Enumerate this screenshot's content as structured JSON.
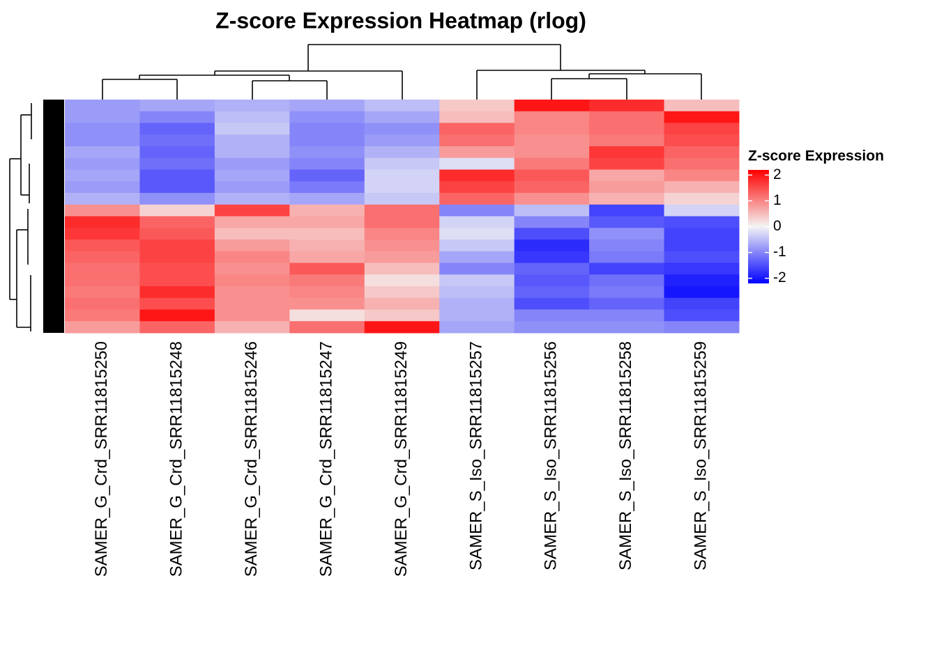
{
  "chart_data": {
    "type": "heatmap",
    "title": "Z-score Expression Heatmap (rlog)",
    "columns": [
      "SAMER_G_Crd_SRR11815250",
      "SAMER_G_Crd_SRR11815248",
      "SAMER_G_Crd_SRR11815246",
      "SAMER_G_Crd_SRR11815247",
      "SAMER_G_Crd_SRR11815249",
      "SAMER_S_Iso_SRR11815257",
      "SAMER_S_Iso_SRR11815256",
      "SAMER_S_Iso_SRR11815258",
      "SAMER_S_Iso_SRR11815259"
    ],
    "values": [
      [
        -0.8,
        -0.7,
        -0.6,
        -0.7,
        -0.5,
        0.4,
        2.0,
        1.8,
        0.5
      ],
      [
        -0.8,
        -1.0,
        -0.5,
        -0.9,
        -0.7,
        0.5,
        1.0,
        1.2,
        2.0
      ],
      [
        -0.9,
        -1.3,
        -0.4,
        -1.0,
        -0.9,
        1.3,
        1.0,
        1.2,
        1.6
      ],
      [
        -0.9,
        -1.2,
        -0.6,
        -1.0,
        -0.8,
        1.2,
        0.9,
        1.1,
        1.5
      ],
      [
        -0.7,
        -1.3,
        -0.6,
        -0.9,
        -0.6,
        0.8,
        0.9,
        1.7,
        1.3
      ],
      [
        -0.8,
        -1.2,
        -0.8,
        -1.0,
        -0.4,
        -0.2,
        1.1,
        1.6,
        1.2
      ],
      [
        -0.7,
        -1.4,
        -0.7,
        -1.3,
        -0.3,
        1.8,
        1.4,
        0.7,
        1.0
      ],
      [
        -0.8,
        -1.4,
        -0.8,
        -1.1,
        -0.3,
        1.6,
        1.3,
        0.8,
        0.6
      ],
      [
        -0.6,
        -0.9,
        -0.6,
        -0.7,
        -0.4,
        1.3,
        0.9,
        0.6,
        0.3
      ],
      [
        0.9,
        0.3,
        1.6,
        0.6,
        1.2,
        -1.0,
        -0.5,
        -1.6,
        -0.3
      ],
      [
        1.8,
        1.3,
        0.7,
        0.7,
        1.2,
        -0.3,
        -1.0,
        -1.4,
        -1.5
      ],
      [
        1.7,
        1.4,
        0.5,
        0.5,
        1.0,
        -0.2,
        -1.5,
        -0.9,
        -1.6
      ],
      [
        1.4,
        1.6,
        0.8,
        0.6,
        0.9,
        -0.4,
        -1.8,
        -1.0,
        -1.6
      ],
      [
        1.3,
        1.6,
        1.0,
        0.7,
        0.8,
        -0.7,
        -1.7,
        -1.1,
        -1.5
      ],
      [
        1.2,
        1.5,
        0.9,
        1.4,
        0.5,
        -1.0,
        -1.3,
        -1.6,
        -1.7
      ],
      [
        1.2,
        1.5,
        1.0,
        1.1,
        0.2,
        -0.4,
        -1.4,
        -1.2,
        -1.9
      ],
      [
        1.1,
        1.8,
        0.9,
        1.0,
        0.4,
        -0.5,
        -1.3,
        -1.1,
        -2.0
      ],
      [
        1.2,
        1.5,
        0.9,
        0.9,
        0.6,
        -0.6,
        -1.5,
        -1.3,
        -1.6
      ],
      [
        1.1,
        2.0,
        0.9,
        0.2,
        0.4,
        -0.6,
        -1.0,
        -1.0,
        -1.5
      ],
      [
        0.8,
        1.3,
        0.6,
        1.2,
        2.0,
        -0.7,
        -0.9,
        -0.9,
        -1.0
      ]
    ],
    "colorbar": {
      "title": "Z-score Expression",
      "lim": [
        -2.2,
        2.2
      ],
      "ticks": [
        -2,
        -1,
        0,
        1,
        2
      ],
      "colors": [
        "#0000ff",
        "#f4f4f4",
        "#ff0000"
      ]
    }
  }
}
